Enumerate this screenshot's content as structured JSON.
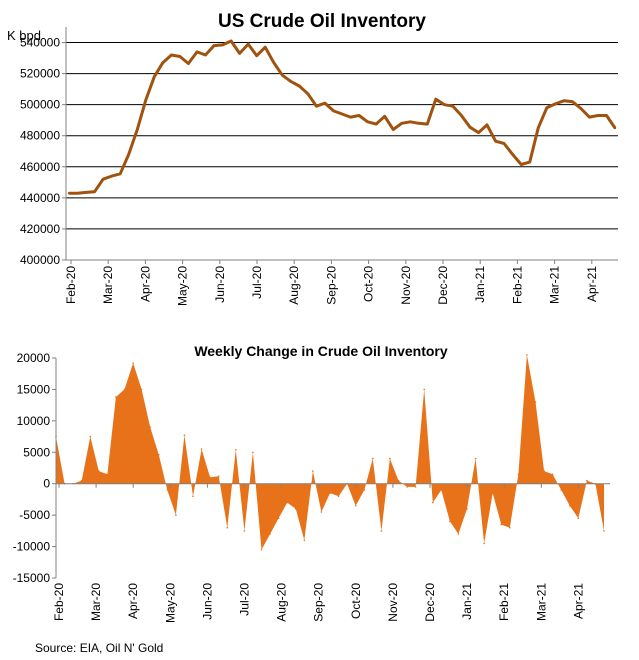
{
  "colors": {
    "line": "#A0520F",
    "area": "#E8721A",
    "axis": "#808080"
  },
  "source": "Source: EIA, Oil N' Gold",
  "chart_data": [
    {
      "type": "line",
      "title": "US Crude Oil Inventory",
      "ylabel": "K bpd",
      "ylim": [
        400000,
        550000
      ],
      "yticks": [
        400000,
        420000,
        440000,
        460000,
        480000,
        500000,
        520000,
        540000
      ],
      "ytick_labels": [
        "400000",
        "420000",
        "440000",
        "460000",
        "480000",
        "500000",
        "520000",
        "540000"
      ],
      "xlabels": [
        "Feb-20",
        "Mar-20",
        "Apr-20",
        "May-20",
        "Jun-20",
        "Jul-20",
        "Aug-20",
        "Sep-20",
        "Oct-20",
        "Nov-20",
        "Dec-20",
        "Jan-21",
        "Feb-21",
        "Mar-21",
        "Apr-21"
      ],
      "grid": "horizontal",
      "series": [
        {
          "values": [
            443000,
            443000,
            443500,
            444000,
            452000,
            454000,
            455500,
            468000,
            484000,
            503000,
            518000,
            527000,
            532000,
            531000,
            526500,
            534000,
            532000,
            538000,
            538500,
            541000,
            533000,
            539000,
            531500,
            537000,
            527000,
            519000,
            515000,
            512000,
            507000,
            499000,
            501000,
            496000,
            494000,
            492000,
            493000,
            489000,
            487500,
            492500,
            484000,
            488000,
            489000,
            488000,
            487500,
            503500,
            500000,
            499000,
            493000,
            485500,
            482000,
            487000,
            476500,
            475000,
            468000,
            461500,
            463000,
            485000,
            498000,
            500500,
            502500,
            502000,
            497500,
            492000,
            493000,
            493000,
            485000
          ]
        }
      ]
    },
    {
      "type": "area",
      "title": "Weekly Change in Crude Oil Inventory",
      "ylim": [
        -15000,
        20000
      ],
      "yticks": [
        -15000,
        -10000,
        -5000,
        0,
        5000,
        10000,
        15000,
        20000
      ],
      "ytick_labels": [
        "-15000",
        "-10000",
        "-5000",
        "0",
        "5000",
        "10000",
        "15000",
        "20000"
      ],
      "xlabels": [
        "Feb-20",
        "Mar-20",
        "Apr-20",
        "May-20",
        "Jun-20",
        "Jul-20",
        "Aug-20",
        "Sep-20",
        "Oct-20",
        "Nov-20",
        "Dec-20",
        "Jan-21",
        "Feb-21",
        "Mar-21",
        "Apr-21"
      ],
      "grid": "none",
      "series": [
        {
          "values": [
            7500,
            0,
            0,
            500,
            7500,
            2000,
            1500,
            13800,
            15000,
            19200,
            15000,
            9000,
            4600,
            -1000,
            -5000,
            7700,
            -2000,
            5500,
            1000,
            1200,
            -7000,
            5400,
            -7500,
            5000,
            -10500,
            -8000,
            -5500,
            -3000,
            -4000,
            -9000,
            2000,
            -4500,
            -1500,
            -2000,
            0,
            -3500,
            -1000,
            4000,
            -7500,
            4000,
            500,
            -500,
            -500,
            15000,
            -3000,
            -1000,
            -6000,
            -8000,
            -4000,
            4000,
            -9500,
            -1500,
            -6500,
            -7000,
            1500,
            20500,
            13000,
            2000,
            1500,
            -1000,
            -3500,
            -5500,
            500,
            0,
            -7500
          ]
        }
      ]
    }
  ]
}
